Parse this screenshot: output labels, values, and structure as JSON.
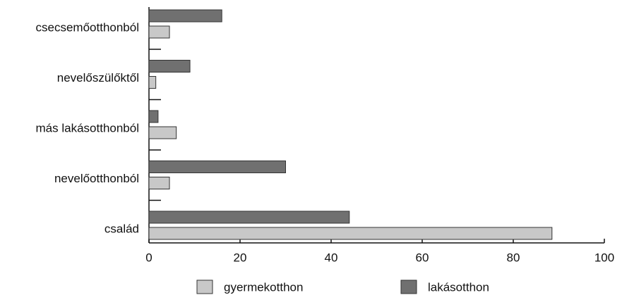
{
  "chart_data": {
    "type": "bar",
    "orientation": "horizontal",
    "categories": [
      "csecsemőotthonból",
      "nevelőszülőktől",
      "más lakásotthonból",
      "nevelőotthonból",
      "család"
    ],
    "series": [
      {
        "name": "gyermekotthon",
        "color": "#c8c8c8",
        "values": [
          4.5,
          1.5,
          6,
          4.5,
          88.5
        ]
      },
      {
        "name": "lakásotthon",
        "color": "#707070",
        "values": [
          16,
          9,
          2,
          30,
          44
        ]
      }
    ],
    "xlim": [
      0,
      100
    ],
    "xticks": [
      0,
      20,
      40,
      60,
      80,
      100
    ],
    "legend": "bottom"
  }
}
